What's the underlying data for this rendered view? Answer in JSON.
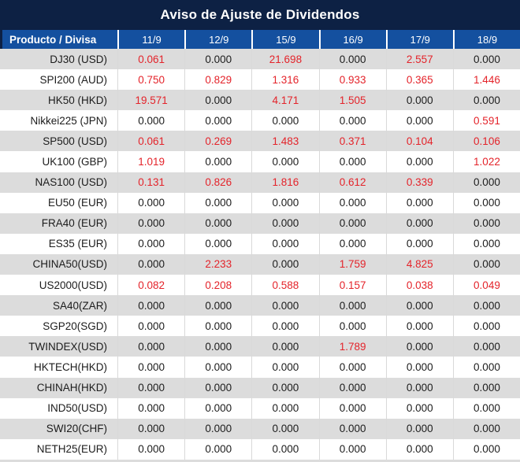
{
  "title": "Aviso de Ajuste de Dividendos",
  "colors": {
    "title_bg": "#0d2144",
    "header_bg": "#14509f",
    "row_alt_bg": "#dcdcdc",
    "negative_red": "#e4232a",
    "text": "#1c1c1c"
  },
  "table": {
    "product_header": "Producto / Divisa",
    "date_headers": [
      "11/9",
      "12/9",
      "15/9",
      "16/9",
      "17/9",
      "18/9"
    ],
    "rows": [
      {
        "product": "DJ30 (USD)",
        "values": [
          "0.061",
          "0.000",
          "21.698",
          "0.000",
          "2.557",
          "0.000"
        ],
        "red": [
          true,
          false,
          true,
          false,
          true,
          false
        ]
      },
      {
        "product": "SPI200 (AUD)",
        "values": [
          "0.750",
          "0.829",
          "1.316",
          "0.933",
          "0.365",
          "1.446"
        ],
        "red": [
          true,
          true,
          true,
          true,
          true,
          true
        ]
      },
      {
        "product": "HK50 (HKD)",
        "values": [
          "19.571",
          "0.000",
          "4.171",
          "1.505",
          "0.000",
          "0.000"
        ],
        "red": [
          true,
          false,
          true,
          true,
          false,
          false
        ]
      },
      {
        "product": "Nikkei225 (JPN)",
        "values": [
          "0.000",
          "0.000",
          "0.000",
          "0.000",
          "0.000",
          "0.591"
        ],
        "red": [
          false,
          false,
          false,
          false,
          false,
          true
        ]
      },
      {
        "product": "SP500 (USD)",
        "values": [
          "0.061",
          "0.269",
          "1.483",
          "0.371",
          "0.104",
          "0.106"
        ],
        "red": [
          true,
          true,
          true,
          true,
          true,
          true
        ]
      },
      {
        "product": "UK100 (GBP)",
        "values": [
          "1.019",
          "0.000",
          "0.000",
          "0.000",
          "0.000",
          "1.022"
        ],
        "red": [
          true,
          false,
          false,
          false,
          false,
          true
        ]
      },
      {
        "product": "NAS100 (USD)",
        "values": [
          "0.131",
          "0.826",
          "1.816",
          "0.612",
          "0.339",
          "0.000"
        ],
        "red": [
          true,
          true,
          true,
          true,
          true,
          false
        ]
      },
      {
        "product": "EU50 (EUR)",
        "values": [
          "0.000",
          "0.000",
          "0.000",
          "0.000",
          "0.000",
          "0.000"
        ],
        "red": [
          false,
          false,
          false,
          false,
          false,
          false
        ]
      },
      {
        "product": "FRA40 (EUR)",
        "values": [
          "0.000",
          "0.000",
          "0.000",
          "0.000",
          "0.000",
          "0.000"
        ],
        "red": [
          false,
          false,
          false,
          false,
          false,
          false
        ]
      },
      {
        "product": "ES35 (EUR)",
        "values": [
          "0.000",
          "0.000",
          "0.000",
          "0.000",
          "0.000",
          "0.000"
        ],
        "red": [
          false,
          false,
          false,
          false,
          false,
          false
        ]
      },
      {
        "product": "CHINA50(USD)",
        "values": [
          "0.000",
          "2.233",
          "0.000",
          "1.759",
          "4.825",
          "0.000"
        ],
        "red": [
          false,
          true,
          false,
          true,
          true,
          false
        ]
      },
      {
        "product": "US2000(USD)",
        "values": [
          "0.082",
          "0.208",
          "0.588",
          "0.157",
          "0.038",
          "0.049"
        ],
        "red": [
          true,
          true,
          true,
          true,
          true,
          true
        ]
      },
      {
        "product": "SA40(ZAR)",
        "values": [
          "0.000",
          "0.000",
          "0.000",
          "0.000",
          "0.000",
          "0.000"
        ],
        "red": [
          false,
          false,
          false,
          false,
          false,
          false
        ]
      },
      {
        "product": "SGP20(SGD)",
        "values": [
          "0.000",
          "0.000",
          "0.000",
          "0.000",
          "0.000",
          "0.000"
        ],
        "red": [
          false,
          false,
          false,
          false,
          false,
          false
        ]
      },
      {
        "product": "TWINDEX(USD)",
        "values": [
          "0.000",
          "0.000",
          "0.000",
          "1.789",
          "0.000",
          "0.000"
        ],
        "red": [
          false,
          false,
          false,
          true,
          false,
          false
        ]
      },
      {
        "product": "HKTECH(HKD)",
        "values": [
          "0.000",
          "0.000",
          "0.000",
          "0.000",
          "0.000",
          "0.000"
        ],
        "red": [
          false,
          false,
          false,
          false,
          false,
          false
        ]
      },
      {
        "product": "CHINAH(HKD)",
        "values": [
          "0.000",
          "0.000",
          "0.000",
          "0.000",
          "0.000",
          "0.000"
        ],
        "red": [
          false,
          false,
          false,
          false,
          false,
          false
        ]
      },
      {
        "product": "IND50(USD)",
        "values": [
          "0.000",
          "0.000",
          "0.000",
          "0.000",
          "0.000",
          "0.000"
        ],
        "red": [
          false,
          false,
          false,
          false,
          false,
          false
        ]
      },
      {
        "product": "SWI20(CHF)",
        "values": [
          "0.000",
          "0.000",
          "0.000",
          "0.000",
          "0.000",
          "0.000"
        ],
        "red": [
          false,
          false,
          false,
          false,
          false,
          false
        ]
      },
      {
        "product": "NETH25(EUR)",
        "values": [
          "0.000",
          "0.000",
          "0.000",
          "0.000",
          "0.000",
          "0.000"
        ],
        "red": [
          false,
          false,
          false,
          false,
          false,
          false
        ]
      }
    ]
  }
}
